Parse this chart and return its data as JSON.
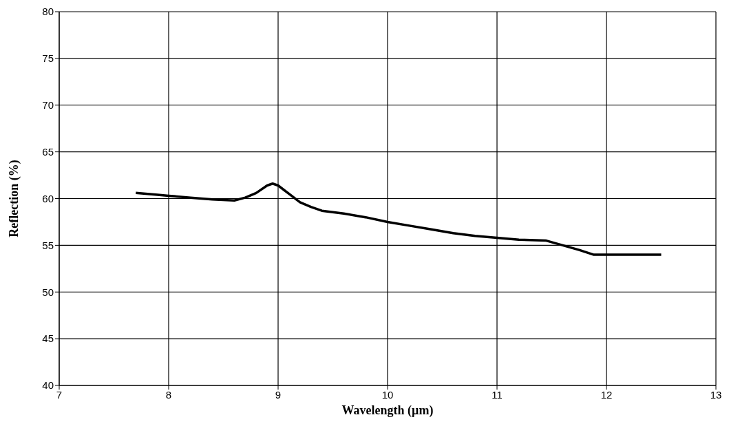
{
  "chart_data": {
    "type": "line",
    "xlabel": "Wavelength (µm)",
    "ylabel": "Reflection (%)",
    "x": [
      7.7,
      7.9,
      8.0,
      8.2,
      8.4,
      8.6,
      8.7,
      8.8,
      8.9,
      8.95,
      9.0,
      9.1,
      9.2,
      9.3,
      9.4,
      9.6,
      9.8,
      10.0,
      10.2,
      10.4,
      10.6,
      10.8,
      11.0,
      11.2,
      11.45,
      11.6,
      11.75,
      11.88,
      12.0,
      12.5
    ],
    "series": [
      {
        "color": "#000000",
        "values": [
          60.6,
          60.4,
          60.3,
          60.1,
          59.9,
          59.8,
          60.1,
          60.6,
          61.4,
          61.6,
          61.4,
          60.5,
          59.6,
          59.1,
          58.7,
          58.4,
          58.0,
          57.5,
          57.1,
          56.7,
          56.3,
          56.0,
          55.8,
          55.6,
          55.5,
          55.0,
          54.5,
          54.0,
          54.0,
          54.0
        ]
      }
    ],
    "xlim": [
      7,
      13
    ],
    "xticks": [
      7,
      8,
      9,
      10,
      11,
      12,
      13
    ],
    "ylim": [
      40,
      80
    ],
    "yticks": [
      40,
      45,
      50,
      55,
      60,
      65,
      70,
      75,
      80
    ],
    "grid": true,
    "line_style": "solid"
  }
}
